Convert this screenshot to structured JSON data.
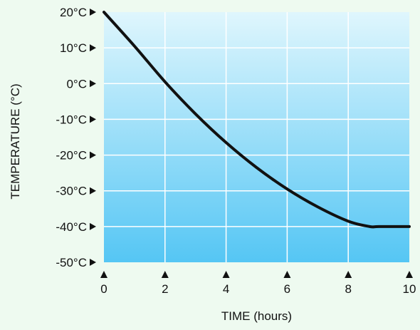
{
  "chart_data": {
    "type": "line",
    "title": "",
    "xlabel": "TIME (hours)",
    "ylabel": "TEMPERATURE (°C)",
    "xlim": [
      0,
      10
    ],
    "ylim": [
      -50,
      20
    ],
    "x_ticks": [
      0,
      2,
      4,
      6,
      8,
      10
    ],
    "x_tick_labels": [
      "0",
      "2",
      "4",
      "6",
      "8",
      "10"
    ],
    "y_ticks": [
      20,
      10,
      0,
      -10,
      -20,
      -30,
      -40,
      -50
    ],
    "y_tick_labels": [
      "20°C",
      "10°C",
      "0°C",
      "-10°C",
      "-20°C",
      "-30°C",
      "-40°C",
      "-50°C"
    ],
    "grid": true,
    "legend": "none",
    "colors": {
      "background": "#eefaf0",
      "plot_top": "#dff6fd",
      "plot_bottom": "#55c6f4",
      "grid": "#ffffff",
      "line": "#111111",
      "marker": "#111111"
    },
    "series": [
      {
        "x": [
          0,
          1,
          2,
          3,
          4,
          5,
          6,
          7,
          8,
          8.7,
          9,
          10
        ],
        "y": [
          20,
          10.5,
          0.5,
          -8.5,
          -16.5,
          -23.5,
          -29.5,
          -34.5,
          -38.5,
          -40,
          -40,
          -40
        ]
      }
    ]
  }
}
